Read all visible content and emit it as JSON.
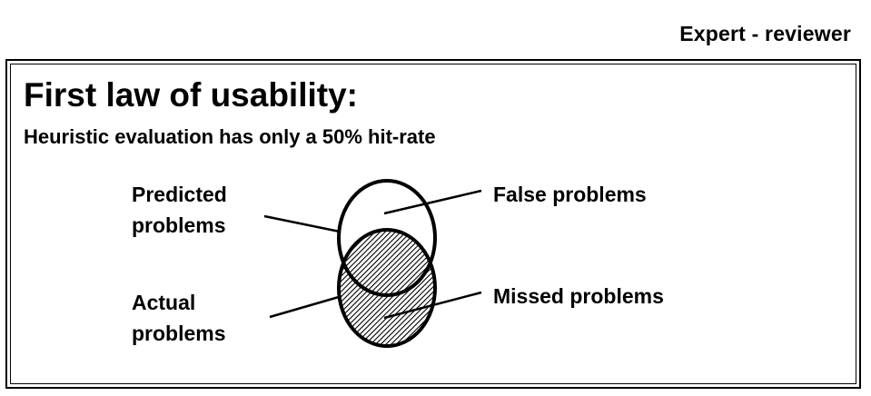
{
  "header": {
    "label": "Expert - reviewer"
  },
  "slide": {
    "title": "First law of usability:",
    "subtitle": "Heuristic evaluation has only a 50% hit-rate"
  },
  "diagram": {
    "labels": {
      "predicted_line1": "Predicted",
      "predicted_line2": "problems",
      "actual_line1": "Actual",
      "actual_line2": "problems",
      "false_problems": "False problems",
      "missed_problems": "Missed problems"
    }
  }
}
